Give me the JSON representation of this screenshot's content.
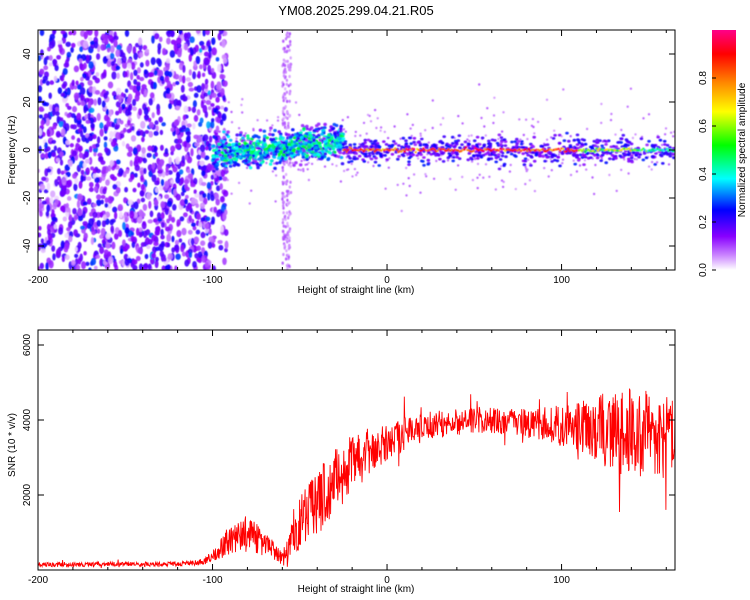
{
  "title": "YM08.2025.299.04.21.R05",
  "chart_data": [
    {
      "type": "heatmap",
      "name": "spectrogram",
      "xlabel": "Height of straight line (km)",
      "ylabel": "Frequency (Hz)",
      "xlim": [
        -200,
        165
      ],
      "ylim": [
        -50,
        50
      ],
      "xticks": [
        -200,
        -100,
        0,
        100
      ],
      "yticks": [
        -40,
        -20,
        0,
        20,
        40
      ],
      "colorbar": {
        "label": "Normalized spectral amplitude",
        "range": [
          0.0,
          1.0
        ],
        "ticks": [
          0.0,
          0.2,
          0.4,
          0.6,
          0.8
        ],
        "colors": [
          "#ffffff",
          "#8800ff",
          "#0000ff",
          "#00ffff",
          "#00ff00",
          "#ffff00",
          "#ff8800",
          "#ff0000",
          "#ff0088"
        ]
      },
      "features": [
        {
          "x_from": -200,
          "x_to": -100,
          "freq_spread_hz": 50,
          "amplitude": 0.15,
          "note": "broadband noise"
        },
        {
          "x_from": -100,
          "x_to": -25,
          "center_hz": 2,
          "spread_hz": 6,
          "amplitude": 0.4,
          "note": "emerging signal"
        },
        {
          "x_from": -25,
          "x_to": 165,
          "center_hz": 0,
          "spread_hz": 2,
          "amplitude": 0.85,
          "note": "narrow carrier line"
        },
        {
          "x_from": -60,
          "x_to": -55,
          "freq_spread_hz": 50,
          "amplitude": 0.1,
          "note": "vertical stripe"
        }
      ]
    },
    {
      "type": "line",
      "name": "snr",
      "xlabel": "Height of straight line (km)",
      "ylabel": "SNR (10 * v/v)",
      "xlim": [
        -200,
        165
      ],
      "ylim": [
        0,
        6400
      ],
      "xticks": [
        -200,
        -100,
        0,
        100
      ],
      "yticks": [
        2000,
        4000,
        6000
      ],
      "color": "#ff0000",
      "series": [
        {
          "name": "SNR",
          "x": [
            -200,
            -180,
            -160,
            -140,
            -120,
            -105,
            -100,
            -95,
            -90,
            -85,
            -80,
            -75,
            -70,
            -65,
            -60,
            -55,
            -50,
            -45,
            -40,
            -35,
            -30,
            -25,
            -20,
            -15,
            -10,
            -5,
            0,
            10,
            20,
            30,
            40,
            50,
            60,
            70,
            80,
            90,
            100,
            110,
            120,
            130,
            140,
            150,
            160,
            165
          ],
          "y": [
            150,
            140,
            160,
            150,
            160,
            220,
            350,
            600,
            800,
            950,
            1000,
            850,
            700,
            500,
            300,
            700,
            1300,
            1600,
            1800,
            2100,
            2400,
            2600,
            2800,
            2950,
            3100,
            3250,
            3400,
            3650,
            3800,
            3900,
            3950,
            4000,
            4000,
            3950,
            3900,
            3900,
            3850,
            3800,
            3800,
            3700,
            3650,
            3600,
            3550,
            3600
          ],
          "noise_amplitude": [
            60,
            60,
            60,
            60,
            60,
            80,
            150,
            300,
            400,
            450,
            450,
            400,
            350,
            250,
            200,
            500,
            700,
            800,
            900,
            900,
            900,
            850,
            800,
            700,
            600,
            550,
            500,
            450,
            400,
            400,
            350,
            350,
            350,
            350,
            400,
            450,
            550,
            700,
            900,
            1100,
            1200,
            1200,
            1100,
            1000
          ]
        }
      ]
    }
  ]
}
